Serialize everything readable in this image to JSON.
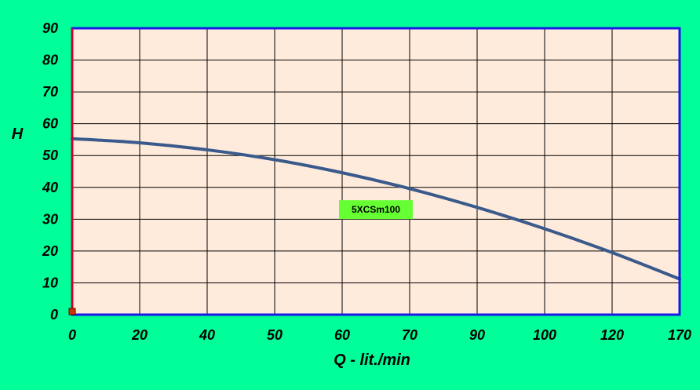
{
  "chart_data": {
    "type": "line",
    "title": "",
    "xlabel": "Q - lit./min",
    "ylabel": "H",
    "x_tick_labels": [
      "0",
      "20",
      "40",
      "50",
      "60",
      "70",
      "90",
      "100",
      "120",
      "170"
    ],
    "y_ticks": [
      0,
      10,
      20,
      30,
      40,
      50,
      60,
      70,
      80,
      90
    ],
    "ylim": [
      0,
      90
    ],
    "grid": true,
    "series": [
      {
        "name": "5XCSm100",
        "x_index": [
          0,
          1,
          2,
          3,
          4,
          5,
          6,
          7,
          8,
          9
        ],
        "values": [
          55.3,
          54.0,
          51.8,
          48.7,
          44.6,
          39.6,
          33.7,
          27.0,
          19.5,
          11.2
        ]
      }
    ],
    "annotations": [
      {
        "text": "5XCSm100",
        "x_index": 4.5,
        "y": 33
      }
    ],
    "colors": {
      "background": "#00FF99",
      "plot_background": "#FFEBDC",
      "plot_border": "#1A1AE6",
      "y_axis_line": "#CC0033",
      "grid": "#000000",
      "series_line": "#3A5A8C",
      "label_box": "#66FF33",
      "origin_marker": "#CC3300"
    }
  }
}
